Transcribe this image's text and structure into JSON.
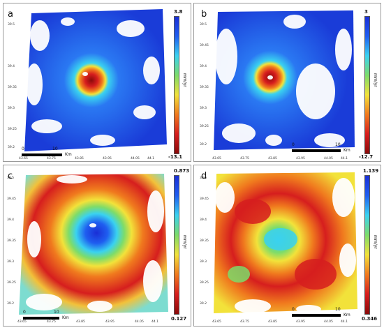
{
  "panels": [
    {
      "id": "a",
      "letter": "a",
      "colorbar": {
        "max": "3.8",
        "min": "-13.1",
        "unit": "mm/yr",
        "scheme": "jet-reversed"
      },
      "scale_bar": {
        "start": "0",
        "end": "10",
        "unit": "Km"
      },
      "y_ticks": [
        "39.5",
        "39.45",
        "39.4",
        "39.35",
        "39.3",
        "39.25",
        "39.2"
      ],
      "x_ticks": [
        "43.65",
        "43.7",
        "43.75",
        "43.8",
        "43.85",
        "43.9",
        "43.95",
        "44",
        "44.05",
        "44.1"
      ]
    },
    {
      "id": "b",
      "letter": "b",
      "colorbar": {
        "max": "3",
        "min": "-12.7",
        "unit": "mm/yr",
        "scheme": "jet-reversed"
      },
      "scale_bar": {
        "start": "0",
        "end": "10",
        "unit": "Km"
      },
      "y_ticks": [
        "39.5",
        "39.45",
        "39.4",
        "39.35",
        "39.3",
        "39.25",
        "39.2"
      ],
      "x_ticks": [
        "43.65",
        "43.7",
        "43.75",
        "43.8",
        "43.85",
        "43.9",
        "43.95",
        "44",
        "44.05",
        "44.1"
      ]
    },
    {
      "id": "c",
      "letter": "c",
      "colorbar": {
        "max": "0.873",
        "min": "0.127",
        "unit": "mm/yr",
        "scheme": "jet-reversed"
      },
      "scale_bar": {
        "start": "0",
        "end": "10",
        "unit": "Km"
      },
      "y_ticks": [
        "39.5",
        "39.45",
        "39.4",
        "39.35",
        "39.3",
        "39.25",
        "39.2"
      ],
      "x_ticks": [
        "43.65",
        "43.7",
        "43.75",
        "43.8",
        "43.85",
        "43.9",
        "43.95",
        "44",
        "44.05",
        "44.1"
      ]
    },
    {
      "id": "d",
      "letter": "d",
      "colorbar": {
        "max": "1.139",
        "min": "0.346",
        "unit": "mm/yr",
        "scheme": "jet-reversed"
      },
      "scale_bar": {
        "start": "0",
        "end": "10",
        "unit": "Km"
      },
      "y_ticks": [
        "39.5",
        "39.45",
        "39.4",
        "39.35",
        "39.3",
        "39.25",
        "39.2"
      ],
      "x_ticks": [
        "43.65",
        "43.7",
        "43.75",
        "43.8",
        "43.85",
        "43.9",
        "43.95",
        "44",
        "44.05",
        "44.1"
      ]
    }
  ],
  "colors": {
    "deep_blue": "#1a2fd6",
    "blue": "#1f5ef0",
    "cyan": "#3ad2f0",
    "green": "#7ddc6a",
    "yellow": "#f2e23a",
    "orange": "#f07a1e",
    "red": "#d61e1e",
    "dark_red": "#8a0a0a"
  }
}
